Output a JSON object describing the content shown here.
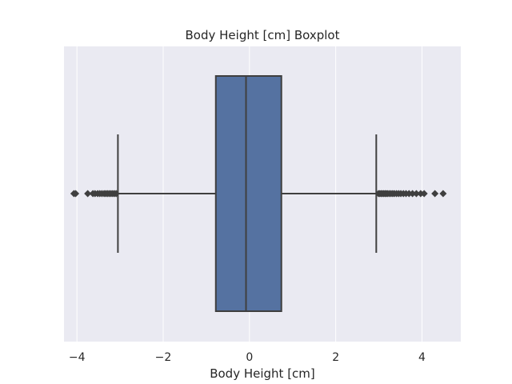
{
  "chart_data": {
    "type": "boxplot",
    "title": "Body Height [cm] Boxplot",
    "xlabel": "Body Height [cm]",
    "ylabel": "",
    "xlim": [
      -4.3,
      4.9
    ],
    "x_ticks": [
      -4,
      -2,
      0,
      2,
      4
    ],
    "x_tick_labels": [
      "−4",
      "−2",
      "0",
      "2",
      "4"
    ],
    "grid": true,
    "colors": {
      "background": "#EAEAF2",
      "grid": "#FFFFFF",
      "box_fill": "#5572A1",
      "box_line": "#3F3F3F"
    },
    "box": {
      "whisker_low": -3.05,
      "q1": -0.78,
      "median": -0.08,
      "q3": 0.74,
      "whisker_high": 2.94
    },
    "outliers_low": [
      -4.07,
      -4.03,
      -3.75,
      -3.63,
      -3.58,
      -3.52,
      -3.47,
      -3.42,
      -3.37,
      -3.33,
      -3.29,
      -3.25,
      -3.21,
      -3.17,
      -3.13,
      -3.09
    ],
    "outliers_high": [
      2.99,
      3.02,
      3.05,
      3.08,
      3.11,
      3.14,
      3.17,
      3.2,
      3.24,
      3.28,
      3.32,
      3.36,
      3.41,
      3.46,
      3.51,
      3.57,
      3.63,
      3.7,
      3.78,
      3.87,
      3.97,
      4.05,
      4.3,
      4.49
    ]
  }
}
